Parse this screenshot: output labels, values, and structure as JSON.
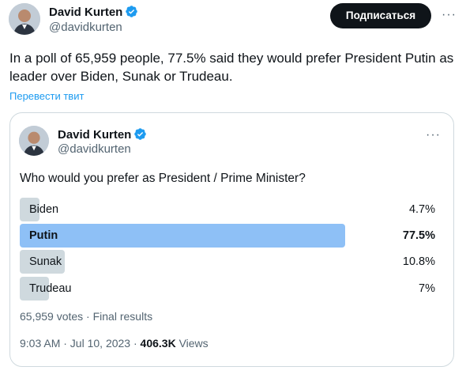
{
  "tweet": {
    "author_name": "David Kurten",
    "author_handle": "@davidkurten",
    "subscribe_label": "Подписаться",
    "more_label": "···",
    "text": "In a poll of 65,959 people, 77.5% said they would prefer President Putin as leader over Biden, Sunak or Trudeau.",
    "translate_label": "Перевести твит"
  },
  "quote": {
    "author_name": "David Kurten",
    "author_handle": "@davidkurten",
    "more_label": "···",
    "question": "Who would you prefer as President / Prime Minister?",
    "options": [
      {
        "label": "Biden",
        "percent_text": "4.7%",
        "percent": 4.7
      },
      {
        "label": "Putin",
        "percent_text": "77.5%",
        "percent": 77.5
      },
      {
        "label": "Sunak",
        "percent_text": "10.8%",
        "percent": 10.8
      },
      {
        "label": "Trudeau",
        "percent_text": "7%",
        "percent": 7
      }
    ],
    "votes_text": "65,959 votes · Final results",
    "time_text": "9:03 AM · Jul 10, 2023 · ",
    "views_count": "406.3K",
    "views_label": " Views"
  },
  "colors": {
    "accent": "#1d9bf0",
    "winner_bar": "#8ec0f6",
    "bar": "#cfd9de",
    "verified": "#1d9bf0"
  }
}
